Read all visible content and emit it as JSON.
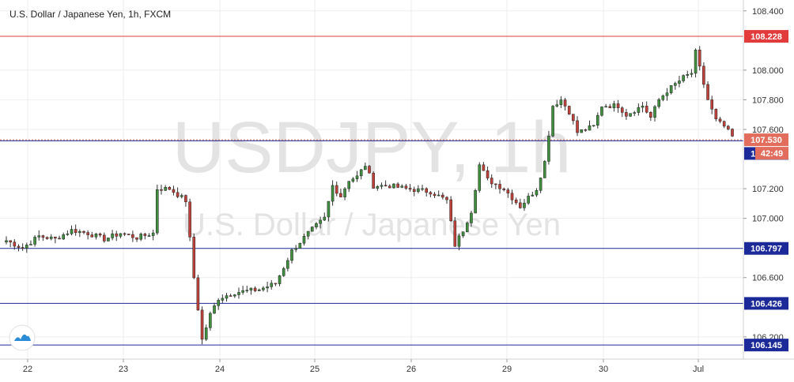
{
  "chart_data": {
    "type": "candlestick",
    "title": "U.S. Dollar / Japanese Yen, 1h, FXCM",
    "watermark": {
      "symbol": "USDJPY, 1h",
      "name": "U.S. Dollar / Japanese Yen"
    },
    "y_ticks": [
      "108.400",
      "108.000",
      "107.800",
      "107.600",
      "107.200",
      "107.000",
      "106.600",
      "106.200"
    ],
    "ylim": [
      106.05,
      108.42
    ],
    "x_ticks": [
      "22",
      "23",
      "24",
      "25",
      "26",
      "29",
      "30",
      "Jul"
    ],
    "levels": [
      {
        "value": 108.228,
        "label": "108.228",
        "color": "#e23b3b",
        "kind": "resistance"
      },
      {
        "value": 107.53,
        "label": "107.530",
        "color": "#e26d5c",
        "kind": "last-price"
      },
      {
        "value": 107.523,
        "label": "107.523",
        "color": "#1c2a99",
        "kind": "support"
      },
      {
        "value": 106.797,
        "label": "106.797",
        "color": "#1c2a99",
        "kind": "support"
      },
      {
        "value": 106.426,
        "label": "106.426",
        "color": "#1c2a99",
        "kind": "support"
      },
      {
        "value": 106.145,
        "label": "106.145",
        "color": "#1c2a99",
        "kind": "support"
      }
    ],
    "countdown": "42:49",
    "colors": {
      "up": "#3f8f3f",
      "down": "#c0403a",
      "wick": "#333333"
    },
    "anchors": [
      [
        0,
        106.85
      ],
      [
        4,
        106.8
      ],
      [
        8,
        106.88
      ],
      [
        12,
        106.86
      ],
      [
        16,
        106.92
      ],
      [
        20,
        106.9
      ],
      [
        24,
        106.86
      ],
      [
        28,
        106.9
      ],
      [
        32,
        106.87
      ],
      [
        36,
        106.9
      ],
      [
        37,
        107.2
      ],
      [
        40,
        107.2
      ],
      [
        44,
        107.12
      ],
      [
        46,
        106.6
      ],
      [
        48,
        106.18
      ],
      [
        50,
        106.35
      ],
      [
        52,
        106.46
      ],
      [
        56,
        106.5
      ],
      [
        62,
        106.52
      ],
      [
        66,
        106.56
      ],
      [
        70,
        106.78
      ],
      [
        74,
        106.9
      ],
      [
        78,
        107.0
      ],
      [
        80,
        107.22
      ],
      [
        82,
        107.15
      ],
      [
        84,
        107.26
      ],
      [
        86,
        107.28
      ],
      [
        88,
        107.36
      ],
      [
        90,
        107.22
      ],
      [
        94,
        107.22
      ],
      [
        98,
        107.2
      ],
      [
        104,
        107.18
      ],
      [
        108,
        107.12
      ],
      [
        110,
        106.82
      ],
      [
        112,
        106.92
      ],
      [
        114,
        107.05
      ],
      [
        116,
        107.36
      ],
      [
        118,
        107.26
      ],
      [
        122,
        107.2
      ],
      [
        126,
        107.08
      ],
      [
        130,
        107.2
      ],
      [
        132,
        107.38
      ],
      [
        134,
        107.76
      ],
      [
        136,
        107.8
      ],
      [
        138,
        107.72
      ],
      [
        140,
        107.58
      ],
      [
        144,
        107.62
      ],
      [
        146,
        107.76
      ],
      [
        150,
        107.76
      ],
      [
        152,
        107.7
      ],
      [
        156,
        107.76
      ],
      [
        158,
        107.68
      ],
      [
        160,
        107.8
      ],
      [
        162,
        107.86
      ],
      [
        166,
        107.95
      ],
      [
        168,
        107.98
      ],
      [
        169,
        108.12
      ],
      [
        172,
        107.8
      ],
      [
        174,
        107.66
      ],
      [
        176,
        107.62
      ],
      [
        178,
        107.55
      ]
    ]
  }
}
